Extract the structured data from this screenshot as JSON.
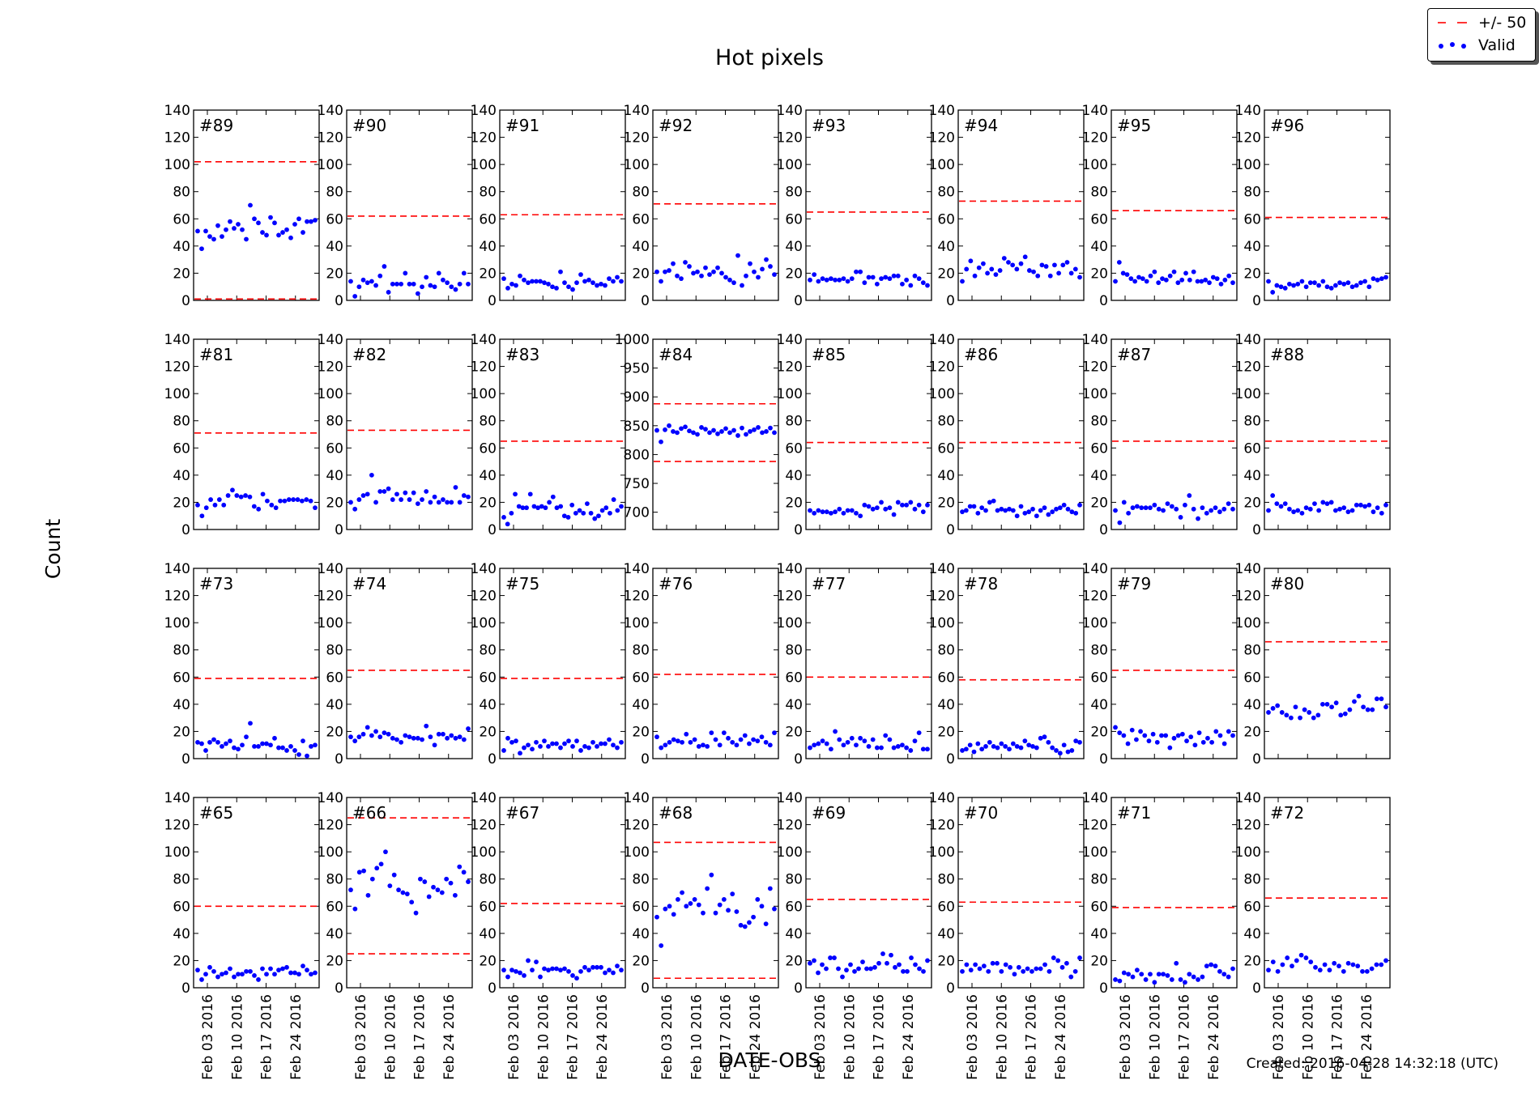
{
  "figure": {
    "title": "Hot pixels",
    "xlabel": "DATE-OBS",
    "ylabel": "Count",
    "created": "Created: 2016-04-28 14:32:18 (UTC)",
    "legend": {
      "threshold_label": "+/- 50",
      "valid_label": "Valid",
      "placement": "top-right"
    },
    "colors": {
      "threshold": "#ff0000",
      "valid": "#0000ff"
    }
  },
  "chart_data": {
    "type": "scatter",
    "grid": false,
    "x_ticks": [
      "Feb 03 2016",
      "Feb 10 2016",
      "Feb 17 2016",
      "Feb 24 2016"
    ],
    "default_ylim": [
      0,
      140
    ],
    "default_yticks": [
      0,
      20,
      40,
      60,
      80,
      100,
      120,
      140
    ],
    "panels": [
      {
        "label": "#89",
        "upper": 102,
        "lower": 1,
        "values": [
          51,
          38,
          51,
          47,
          45,
          55,
          47,
          52,
          58,
          53,
          56,
          52,
          45,
          70,
          60,
          57,
          50,
          48,
          61,
          57,
          48,
          50,
          52,
          46,
          56,
          60,
          50,
          58,
          58,
          59
        ]
      },
      {
        "label": "#90",
        "upper": 62,
        "values": [
          14,
          3,
          10,
          15,
          13,
          14,
          11,
          18,
          25,
          6,
          12,
          12,
          12,
          20,
          12,
          12,
          5,
          10,
          17,
          11,
          10,
          20,
          15,
          13,
          10,
          8,
          12,
          20,
          12
        ]
      },
      {
        "label": "#91",
        "upper": 63,
        "values": [
          16,
          9,
          12,
          11,
          18,
          15,
          13,
          14,
          14,
          14,
          13,
          12,
          10,
          9,
          21,
          13,
          10,
          8,
          13,
          19,
          14,
          15,
          13,
          11,
          12,
          11,
          16,
          14,
          17,
          14
        ]
      },
      {
        "label": "#92",
        "upper": 71,
        "values": [
          21,
          14,
          21,
          22,
          27,
          18,
          16,
          28,
          25,
          20,
          21,
          18,
          24,
          19,
          21,
          24,
          20,
          17,
          15,
          13,
          33,
          11,
          18,
          27,
          21,
          17,
          23,
          30,
          25,
          19
        ]
      },
      {
        "label": "#93",
        "upper": 65,
        "values": [
          15,
          19,
          14,
          16,
          15,
          16,
          15,
          15,
          16,
          14,
          16,
          21,
          21,
          13,
          17,
          17,
          12,
          16,
          17,
          16,
          18,
          18,
          12,
          15,
          11,
          18,
          16,
          13,
          11
        ]
      },
      {
        "label": "#94",
        "upper": 73,
        "values": [
          14,
          23,
          29,
          18,
          24,
          27,
          20,
          23,
          19,
          22,
          31,
          28,
          26,
          23,
          27,
          32,
          22,
          21,
          18,
          26,
          25,
          18,
          26,
          20,
          26,
          28,
          20,
          23,
          17
        ]
      },
      {
        "label": "#95",
        "upper": 66,
        "values": [
          14,
          28,
          20,
          19,
          16,
          14,
          17,
          16,
          14,
          18,
          21,
          13,
          16,
          15,
          18,
          21,
          13,
          15,
          20,
          15,
          21,
          14,
          14,
          15,
          13,
          17,
          16,
          12,
          15,
          18,
          13
        ]
      },
      {
        "label": "#96",
        "upper": 61,
        "values": [
          14,
          6,
          11,
          10,
          9,
          12,
          11,
          12,
          14,
          10,
          13,
          13,
          11,
          14,
          10,
          9,
          11,
          13,
          12,
          13,
          10,
          11,
          13,
          14,
          10,
          16,
          15,
          16,
          17
        ]
      },
      {
        "label": "#81",
        "upper": 71,
        "values": [
          18,
          10,
          16,
          22,
          18,
          22,
          18,
          25,
          29,
          25,
          24,
          25,
          24,
          17,
          15,
          26,
          21,
          18,
          16,
          21,
          21,
          22,
          22,
          22,
          21,
          22,
          21,
          16
        ]
      },
      {
        "label": "#82",
        "upper": 73,
        "values": [
          20,
          15,
          22,
          25,
          26,
          40,
          20,
          28,
          28,
          30,
          22,
          26,
          22,
          27,
          22,
          27,
          19,
          22,
          28,
          20,
          24,
          20,
          22,
          20,
          20,
          31,
          20,
          25,
          24
        ]
      },
      {
        "label": "#83",
        "upper": 65,
        "values": [
          9,
          4,
          12,
          26,
          17,
          16,
          16,
          26,
          17,
          16,
          17,
          16,
          20,
          24,
          16,
          17,
          10,
          9,
          18,
          12,
          14,
          12,
          19,
          12,
          8,
          10,
          14,
          16,
          12,
          22,
          14,
          17
        ]
      },
      {
        "label": "#84",
        "ylim": [
          670,
          1000
        ],
        "yticks": [
          700,
          750,
          800,
          850,
          900,
          950,
          1000
        ],
        "upper": 888,
        "lower": 788,
        "values": [
          842,
          822,
          843,
          850,
          840,
          838,
          845,
          848,
          841,
          838,
          835,
          847,
          844,
          838,
          842,
          836,
          840,
          845,
          838,
          842,
          833,
          846,
          835,
          840,
          843,
          847,
          838,
          840,
          846,
          838
        ]
      },
      {
        "label": "#85",
        "upper": 64,
        "values": [
          14,
          12,
          14,
          13,
          13,
          12,
          13,
          15,
          12,
          14,
          14,
          12,
          10,
          18,
          17,
          15,
          16,
          20,
          15,
          16,
          11,
          20,
          18,
          18,
          20,
          15,
          18,
          13,
          18
        ]
      },
      {
        "label": "#86",
        "upper": 64,
        "values": [
          13,
          14,
          17,
          17,
          12,
          16,
          14,
          20,
          21,
          14,
          15,
          14,
          15,
          14,
          10,
          17,
          12,
          13,
          15,
          10,
          14,
          16,
          11,
          13,
          15,
          16,
          18,
          15,
          13,
          12,
          18
        ]
      },
      {
        "label": "#87",
        "upper": 65,
        "values": [
          14,
          5,
          20,
          12,
          16,
          17,
          16,
          16,
          16,
          18,
          15,
          14,
          19,
          17,
          15,
          9,
          18,
          25,
          15,
          8,
          16,
          12,
          14,
          16,
          13,
          15,
          19,
          15
        ]
      },
      {
        "label": "#88",
        "upper": 65,
        "values": [
          14,
          25,
          19,
          17,
          19,
          15,
          13,
          14,
          12,
          16,
          15,
          19,
          14,
          20,
          19,
          20,
          14,
          15,
          16,
          13,
          14,
          18,
          18,
          17,
          18,
          13,
          16,
          12,
          18
        ]
      },
      {
        "label": "#73",
        "upper": 59,
        "values": [
          12,
          11,
          6,
          12,
          14,
          12,
          9,
          11,
          13,
          8,
          7,
          10,
          16,
          26,
          9,
          9,
          11,
          11,
          10,
          15,
          8,
          8,
          6,
          9,
          6,
          3,
          13,
          2,
          9,
          10
        ]
      },
      {
        "label": "#74",
        "upper": 65,
        "values": [
          16,
          13,
          16,
          18,
          23,
          17,
          20,
          16,
          19,
          18,
          15,
          14,
          12,
          17,
          16,
          15,
          15,
          14,
          24,
          16,
          10,
          18,
          18,
          15,
          17,
          15,
          16,
          14,
          22
        ]
      },
      {
        "label": "#75",
        "upper": 59,
        "values": [
          6,
          15,
          12,
          13,
          4,
          8,
          10,
          7,
          12,
          9,
          13,
          9,
          11,
          11,
          8,
          11,
          13,
          9,
          13,
          6,
          9,
          8,
          12,
          9,
          11,
          11,
          14,
          10,
          8,
          12
        ]
      },
      {
        "label": "#76",
        "upper": 62,
        "values": [
          16,
          8,
          10,
          12,
          14,
          13,
          12,
          18,
          12,
          14,
          9,
          10,
          9,
          19,
          14,
          10,
          19,
          15,
          12,
          10,
          14,
          17,
          11,
          14,
          13,
          16,
          12,
          10,
          19
        ]
      },
      {
        "label": "#77",
        "upper": 60,
        "values": [
          8,
          10,
          11,
          13,
          11,
          7,
          20,
          14,
          10,
          12,
          15,
          10,
          15,
          13,
          9,
          14,
          8,
          8,
          17,
          14,
          8,
          9,
          10,
          8,
          6,
          13,
          19,
          7,
          7
        ]
      },
      {
        "label": "#78",
        "upper": 58,
        "values": [
          6,
          7,
          10,
          5,
          11,
          7,
          9,
          12,
          9,
          8,
          11,
          9,
          7,
          11,
          9,
          8,
          13,
          10,
          9,
          8,
          15,
          16,
          12,
          8,
          6,
          4,
          10,
          5,
          6,
          13,
          12
        ]
      },
      {
        "label": "#79",
        "upper": 65,
        "values": [
          23,
          19,
          17,
          11,
          21,
          14,
          20,
          17,
          13,
          18,
          12,
          17,
          17,
          8,
          15,
          17,
          18,
          13,
          16,
          10,
          19,
          12,
          15,
          12,
          20,
          17,
          11,
          20,
          17
        ]
      },
      {
        "label": "#80",
        "upper": 86,
        "values": [
          34,
          37,
          39,
          34,
          32,
          30,
          38,
          30,
          36,
          34,
          30,
          32,
          40,
          40,
          38,
          41,
          32,
          33,
          36,
          42,
          46,
          38,
          36,
          36,
          44,
          44,
          38
        ]
      },
      {
        "label": "#65",
        "upper": 60,
        "values": [
          13,
          6,
          10,
          15,
          12,
          8,
          10,
          11,
          14,
          8,
          10,
          10,
          12,
          12,
          9,
          6,
          14,
          10,
          14,
          10,
          13,
          14,
          15,
          11,
          11,
          10,
          16,
          13,
          10,
          11
        ]
      },
      {
        "label": "#66",
        "upper": 125,
        "lower": 25,
        "values": [
          72,
          58,
          85,
          86,
          68,
          80,
          88,
          91,
          100,
          75,
          83,
          72,
          70,
          69,
          63,
          55,
          80,
          78,
          67,
          74,
          72,
          70,
          80,
          77,
          68,
          89,
          85,
          78
        ]
      },
      {
        "label": "#67",
        "upper": 62,
        "values": [
          13,
          8,
          13,
          12,
          11,
          9,
          20,
          13,
          19,
          8,
          14,
          13,
          14,
          14,
          13,
          14,
          12,
          9,
          7,
          12,
          15,
          13,
          15,
          15,
          15,
          11,
          13,
          11,
          16,
          13
        ]
      },
      {
        "label": "#68",
        "upper": 107,
        "lower": 7,
        "values": [
          52,
          31,
          58,
          60,
          54,
          65,
          70,
          60,
          62,
          65,
          61,
          55,
          73,
          83,
          55,
          61,
          65,
          57,
          69,
          56,
          46,
          45,
          48,
          52,
          65,
          60,
          47,
          73,
          58
        ]
      },
      {
        "label": "#69",
        "upper": 65,
        "values": [
          18,
          20,
          11,
          17,
          14,
          22,
          22,
          14,
          8,
          13,
          17,
          12,
          14,
          19,
          14,
          14,
          15,
          18,
          25,
          18,
          24,
          15,
          17,
          12,
          12,
          22,
          17,
          14,
          12,
          20
        ]
      },
      {
        "label": "#70",
        "upper": 63,
        "values": [
          12,
          17,
          13,
          17,
          14,
          16,
          12,
          18,
          18,
          12,
          17,
          15,
          10,
          15,
          12,
          14,
          12,
          14,
          14,
          17,
          12,
          22,
          20,
          15,
          18,
          8,
          12,
          22
        ]
      },
      {
        "label": "#71",
        "upper": 59,
        "values": [
          6,
          5,
          11,
          10,
          8,
          13,
          10,
          6,
          10,
          4,
          10,
          10,
          9,
          6,
          18,
          6,
          4,
          10,
          8,
          6,
          8,
          16,
          17,
          16,
          12,
          10,
          8,
          14
        ]
      },
      {
        "label": "#72",
        "upper": 66,
        "values": [
          13,
          19,
          12,
          17,
          22,
          16,
          20,
          24,
          22,
          19,
          15,
          13,
          17,
          13,
          18,
          16,
          12,
          18,
          17,
          16,
          12,
          12,
          14,
          17,
          17,
          20
        ]
      }
    ]
  }
}
